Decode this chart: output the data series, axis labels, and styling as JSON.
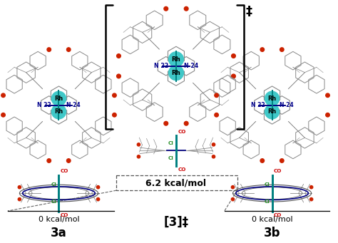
{
  "background_color": "#ffffff",
  "label_3a": "3a",
  "label_3b": "3b",
  "label_ts": "[3]‡",
  "energy_3a": "0 kcal/mol",
  "energy_3b": "0 kcal/mol",
  "energy_ts": "6.2 kcal/mol",
  "label_N22": "N 22",
  "label_N24": "N 24",
  "label_Rh_top": "Rh",
  "label_Rh_bot": "Rh",
  "label_CO": "CO",
  "label_Cl": "Cl",
  "color_N": "#00008B",
  "color_Rh_bg": "#40C8C8",
  "color_CO": "#CC0000",
  "color_Cl": "#228B22",
  "color_bracket": "#000000",
  "color_bond_blue": "#000080",
  "color_bond_teal": "#008080",
  "color_mol": "#666666",
  "color_dashed": "#666666",
  "fig_width": 4.74,
  "fig_height": 3.41,
  "dpi": 100
}
